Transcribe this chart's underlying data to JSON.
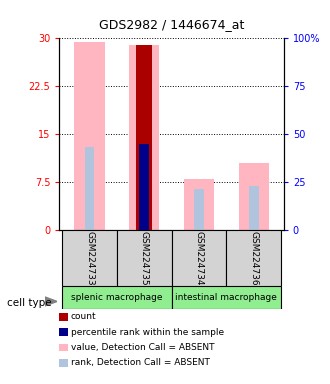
{
  "title": "GDS2982 / 1446674_at",
  "samples": [
    "GSM224733",
    "GSM224735",
    "GSM224734",
    "GSM224736"
  ],
  "group_labels": [
    "splenic macrophage",
    "intestinal macrophage"
  ],
  "ylim_left": [
    0,
    30
  ],
  "ylim_right": [
    0,
    100
  ],
  "yticks_left": [
    0,
    7.5,
    15,
    22.5,
    30
  ],
  "ytick_labels_left": [
    "0",
    "7.5",
    "15",
    "22.5",
    "30"
  ],
  "yticks_right": [
    0,
    25,
    50,
    75,
    100
  ],
  "ytick_labels_right": [
    "0",
    "25",
    "50",
    "75",
    "100%"
  ],
  "pink_bar_color": "#FFB6C1",
  "light_blue_bar_color": "#B0C4DE",
  "dark_red_bar_color": "#AA0000",
  "dark_blue_bar_color": "#00008B",
  "pink_values": [
    29.5,
    29.0,
    8.0,
    10.5
  ],
  "light_blue_values": [
    13.0,
    13.5,
    6.5,
    7.0
  ],
  "dark_red_values": [
    0,
    29.0,
    0,
    0
  ],
  "dark_blue_values": [
    0,
    13.5,
    0,
    0
  ],
  "bar_positions": [
    0,
    1,
    2,
    3
  ],
  "legend_items": [
    {
      "color": "#AA0000",
      "label": "count"
    },
    {
      "color": "#00008B",
      "label": "percentile rank within the sample"
    },
    {
      "color": "#FFB6C1",
      "label": "value, Detection Call = ABSENT"
    },
    {
      "color": "#B0C4DE",
      "label": "rank, Detection Call = ABSENT"
    }
  ],
  "sample_box_color": "#D3D3D3",
  "group_box_color": "#90EE90",
  "cell_type_label": "cell type"
}
